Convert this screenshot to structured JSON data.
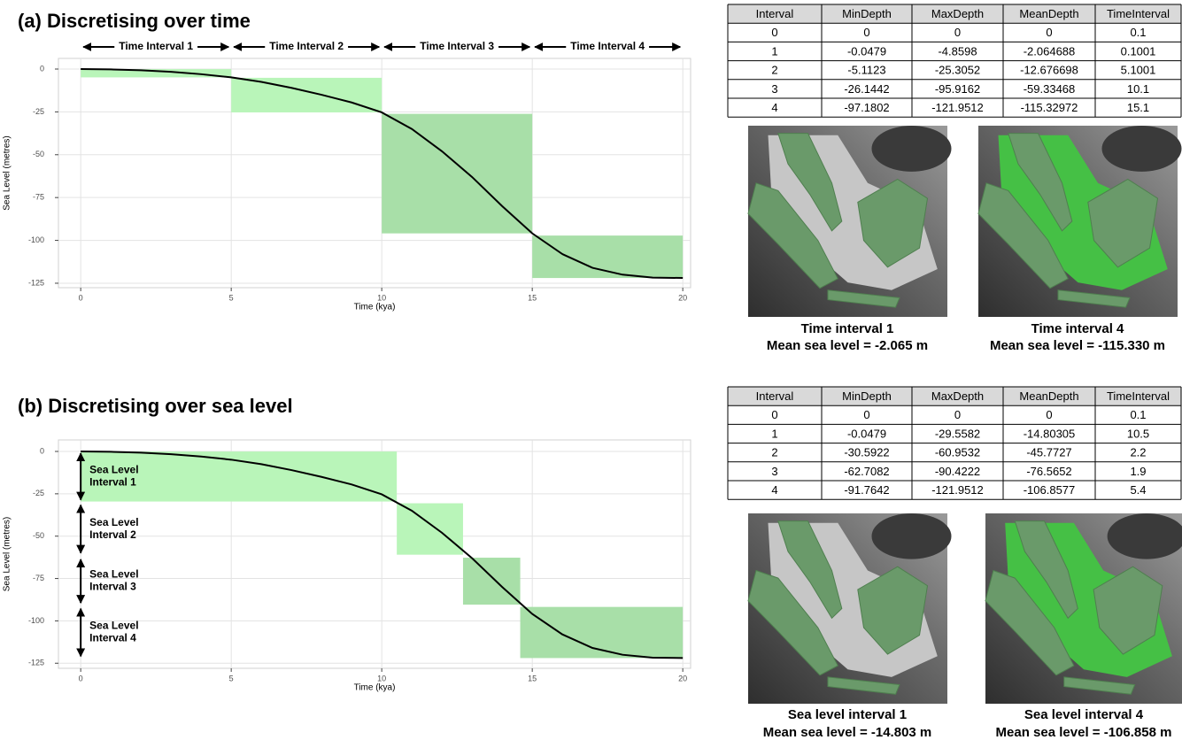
{
  "chart_data": [
    {
      "type": "line",
      "title": "(a) Discretising over time",
      "x_label": "Time (kya)",
      "y_label": "Sea Level (metres)",
      "x": [
        0,
        1,
        2,
        3,
        4,
        5,
        6,
        7,
        8,
        9,
        10,
        11,
        12,
        13,
        14,
        15,
        16,
        17,
        18,
        19,
        20
      ],
      "values": [
        0,
        -0.2,
        -0.7,
        -1.6,
        -3,
        -4.86,
        -7.5,
        -11,
        -15,
        -19.5,
        -25.3,
        -35,
        -48,
        -63,
        -80,
        -95.9,
        -108,
        -116,
        -120,
        -121.7,
        -121.95
      ],
      "color": "#000000",
      "xlim": [
        -0.74,
        20.26
      ],
      "ylim": [
        -127.6,
        6.2
      ],
      "xticks": [
        0,
        5,
        10,
        15,
        20
      ],
      "yticks": [
        0,
        -25,
        -50,
        -75,
        -100,
        -125
      ],
      "grid": true,
      "intervals": [
        {
          "label": "Time Interval 1",
          "x": [
            0,
            5
          ],
          "y": [
            -4.8598,
            -0.0479
          ],
          "color": "#b9f5b9"
        },
        {
          "label": "Time Interval 2",
          "x": [
            5,
            10
          ],
          "y": [
            -25.3052,
            -5.1123
          ],
          "color": "#b9f5b9"
        },
        {
          "label": "Time Interval 3",
          "x": [
            10,
            15
          ],
          "y": [
            -95.9162,
            -26.1442
          ],
          "color": "#a8dfa8"
        },
        {
          "label": "Time Interval 4",
          "x": [
            15,
            20
          ],
          "y": [
            -121.9512,
            -97.1802
          ],
          "color": "#a8dfa8"
        }
      ]
    },
    {
      "type": "line",
      "title": "(b) Discretising over sea level",
      "x_label": "Time (kya)",
      "y_label": "Sea Level (metres)",
      "x": [
        0,
        1,
        2,
        3,
        4,
        5,
        6,
        7,
        8,
        9,
        10,
        11,
        12,
        13,
        14,
        15,
        16,
        17,
        18,
        19,
        20
      ],
      "values": [
        0,
        -0.2,
        -0.7,
        -1.6,
        -3,
        -4.86,
        -7.5,
        -11,
        -15,
        -19.5,
        -25.3,
        -35,
        -48,
        -63,
        -80,
        -95.9,
        -108,
        -116,
        -120,
        -121.7,
        -121.95
      ],
      "color": "#000000",
      "xlim": [
        -0.74,
        20.26
      ],
      "ylim": [
        -128,
        6.8
      ],
      "xticks": [
        0,
        5,
        10,
        15,
        20
      ],
      "yticks": [
        0,
        -25,
        -50,
        -75,
        -100,
        -125
      ],
      "grid": true,
      "intervals": [
        {
          "label": [
            "Sea Level",
            "Interval 1"
          ],
          "x": [
            0,
            10.5
          ],
          "y": [
            -29.5582,
            -0.0479
          ],
          "color": "#b9f5b9"
        },
        {
          "label": [
            "Sea Level",
            "Interval 2"
          ],
          "x": [
            10.5,
            12.7
          ],
          "y": [
            -60.9532,
            -30.5922
          ],
          "color": "#b9f5b9"
        },
        {
          "label": [
            "Sea Level",
            "Interval 3"
          ],
          "x": [
            12.7,
            14.6
          ],
          "y": [
            -90.4222,
            -62.7082
          ],
          "color": "#a8dfa8"
        },
        {
          "label": [
            "Sea Level",
            "Interval 4"
          ],
          "x": [
            14.6,
            20
          ],
          "y": [
            -121.9512,
            -91.7642
          ],
          "color": "#a8dfa8"
        }
      ]
    }
  ],
  "panels": [
    {
      "table": {
        "columns": [
          "Interval",
          "MinDepth",
          "MaxDepth",
          "MeanDepth",
          "TimeInterval"
        ],
        "rows": [
          [
            0,
            0,
            0,
            0,
            0.1
          ],
          [
            1,
            -0.0479,
            -4.8598,
            -2.064688,
            0.1001
          ],
          [
            2,
            -5.1123,
            -25.3052,
            -12.676698,
            5.1001
          ],
          [
            3,
            -26.1442,
            -95.9162,
            -59.33468,
            10.1
          ],
          [
            4,
            -97.1802,
            -121.9512,
            -115.32972,
            15.1
          ]
        ]
      },
      "maps": [
        {
          "caption": [
            "Time interval 1",
            "Mean sea level = -2.065 m"
          ]
        },
        {
          "caption": [
            "Time interval 4",
            "Mean sea level = -115.330 m"
          ]
        }
      ]
    },
    {
      "table": {
        "columns": [
          "Interval",
          "MinDepth",
          "MaxDepth",
          "MeanDepth",
          "TimeInterval"
        ],
        "rows": [
          [
            0,
            0,
            0,
            0,
            0.1
          ],
          [
            1,
            -0.0479,
            -29.5582,
            -14.80305,
            10.5
          ],
          [
            2,
            -30.5922,
            -60.9532,
            -45.7727,
            2.2
          ],
          [
            3,
            -62.7082,
            -90.4222,
            -76.5652,
            1.9
          ],
          [
            4,
            -91.7642,
            -121.9512,
            -106.8577,
            5.4
          ]
        ]
      },
      "maps": [
        {
          "caption": [
            "Sea level interval 1",
            "Mean sea level = -14.803 m"
          ]
        },
        {
          "caption": [
            "Sea level interval 4",
            "Mean sea level = -106.858 m"
          ]
        }
      ]
    }
  ]
}
